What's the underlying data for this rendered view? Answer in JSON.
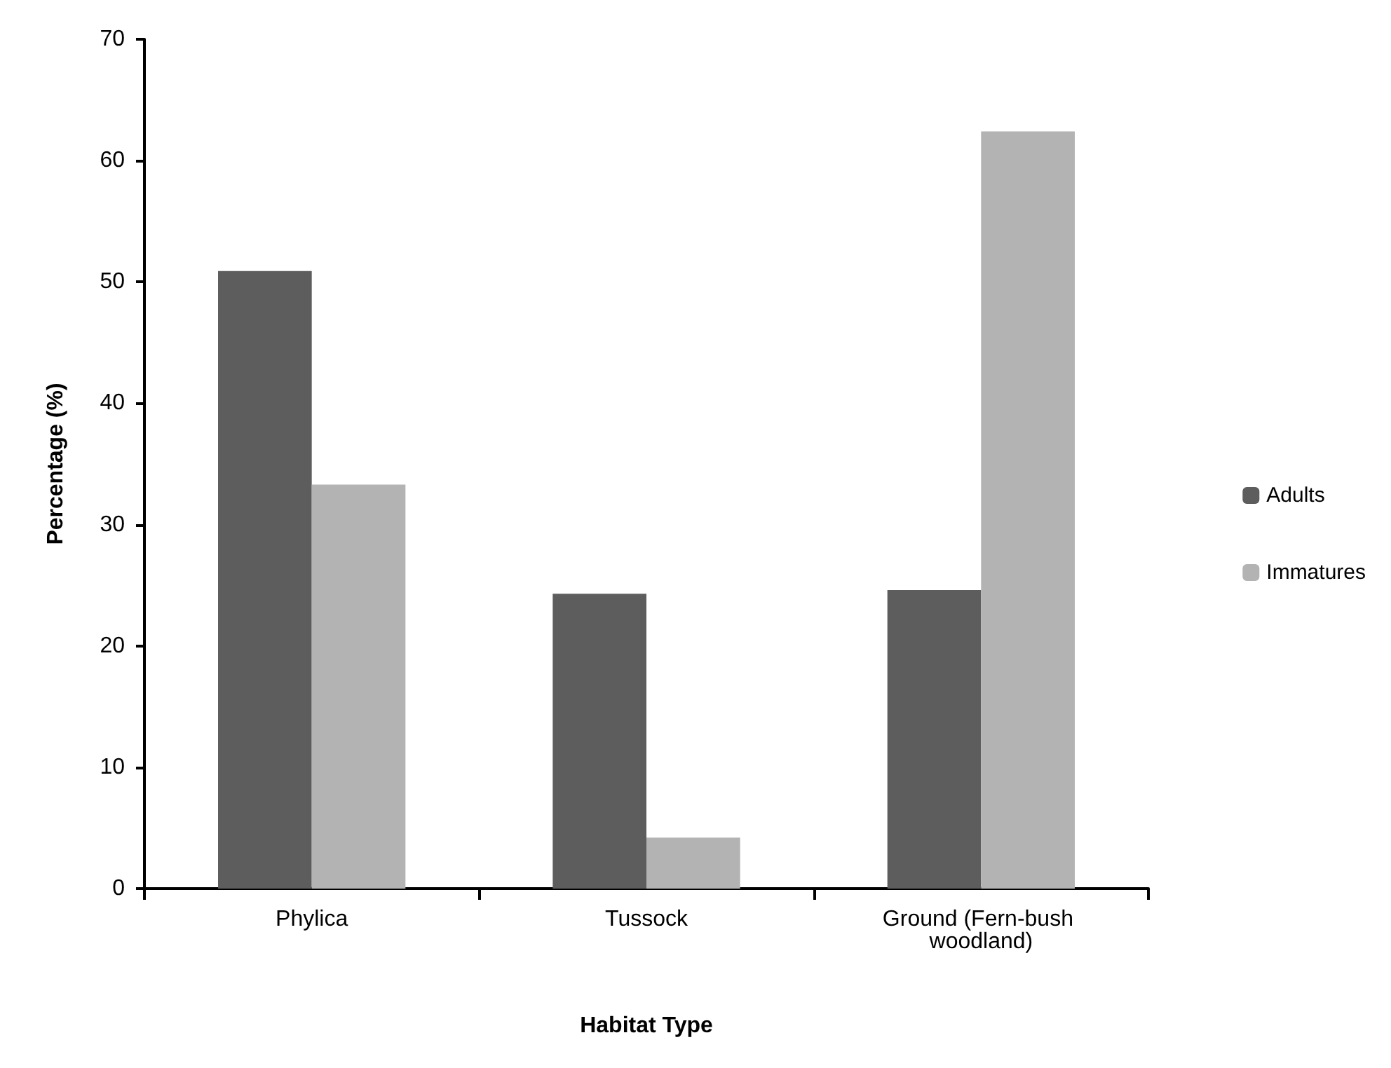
{
  "chart_data": {
    "type": "bar",
    "xlabel": "Habitat Type",
    "ylabel": "Percentage (%)",
    "categories": [
      "Phylica",
      "Tussock",
      "Ground (Fern-bush woodland)"
    ],
    "series": [
      {
        "name": "Adults",
        "color": "#5d5d5d",
        "values": [
          50.9,
          24.3,
          24.6
        ]
      },
      {
        "name": "Immatures",
        "color": "#b3b3b3",
        "values": [
          33.3,
          4.2,
          62.4
        ]
      }
    ],
    "ylim": [
      0,
      70
    ],
    "yticks": [
      0,
      10,
      20,
      30,
      40,
      50,
      60,
      70
    ],
    "grid": false,
    "legend": "right"
  }
}
